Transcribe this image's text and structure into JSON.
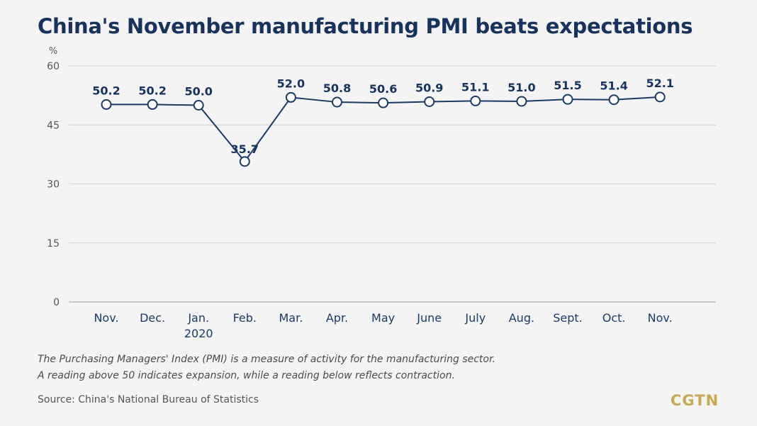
{
  "title": "China's November manufacturing PMI beats expectations",
  "notes": [
    "The Purchasing Managers' Index (PMI) is a measure of activity for the manufacturing sector.",
    "A reading above 50 indicates expansion, while a reading below reflects contraction."
  ],
  "source": "Source: China's National Bureau of Statistics",
  "logo": "CGTN",
  "colors": {
    "title": "#17325d",
    "line": "#1b3a66",
    "grid": "#cfcfcf",
    "logo": "#c9a94f"
  },
  "chart_data": {
    "type": "line",
    "unit_label": "%",
    "categories": [
      [
        "Nov."
      ],
      [
        "Dec."
      ],
      [
        "Jan.",
        "2020"
      ],
      [
        "Feb."
      ],
      [
        "Mar."
      ],
      [
        "Apr."
      ],
      [
        "May"
      ],
      [
        "June"
      ],
      [
        "July"
      ],
      [
        "Aug."
      ],
      [
        "Sept."
      ],
      [
        "Oct."
      ],
      [
        "Nov."
      ]
    ],
    "values": [
      50.2,
      50.2,
      50.0,
      35.7,
      52.0,
      50.8,
      50.6,
      50.9,
      51.1,
      51.0,
      51.5,
      51.4,
      52.1
    ],
    "value_labels": [
      "50.2",
      "50.2",
      "50.0",
      "35.7",
      "52.0",
      "50.8",
      "50.6",
      "50.9",
      "51.1",
      "51.0",
      "51.5",
      "51.4",
      "52.1"
    ],
    "ylim": [
      0,
      60
    ],
    "yticks": [
      0,
      15,
      30,
      45,
      60
    ],
    "grid": true,
    "markers": "hollow-circle"
  }
}
